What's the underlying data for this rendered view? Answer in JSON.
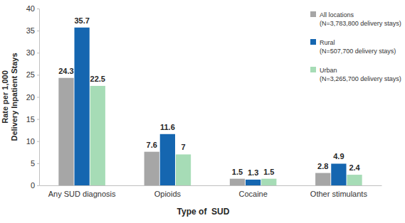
{
  "chart_data": {
    "type": "bar",
    "x_label": "Type of  SUD",
    "y_label": "Rate per 1,000\nDelivery Inpatient Stays",
    "categories": [
      "Any SUD diagnosis",
      "Opioids",
      "Cocaine",
      "Other stimulants"
    ],
    "series": [
      {
        "name": "All locations\n(N=3,783,800 delivery stays)",
        "color": "#a6a6a6",
        "values": [
          24.3,
          7.6,
          1.5,
          2.8
        ]
      },
      {
        "name": "Rural\n(N=507,700 delivery stays)",
        "color": "#1566b0",
        "values": [
          35.7,
          11.6,
          1.3,
          4.9
        ]
      },
      {
        "name": "Urban\n(N=3,265,700 delivery stays)",
        "color": "#a6dcb6",
        "values": [
          22.5,
          7.0,
          1.5,
          2.4
        ]
      }
    ],
    "ylim": [
      0,
      40
    ],
    "yticks": [
      0,
      5,
      10,
      15,
      20,
      25,
      30,
      35,
      40
    ],
    "grid": false,
    "legend": "top-right",
    "data_labels": true
  }
}
